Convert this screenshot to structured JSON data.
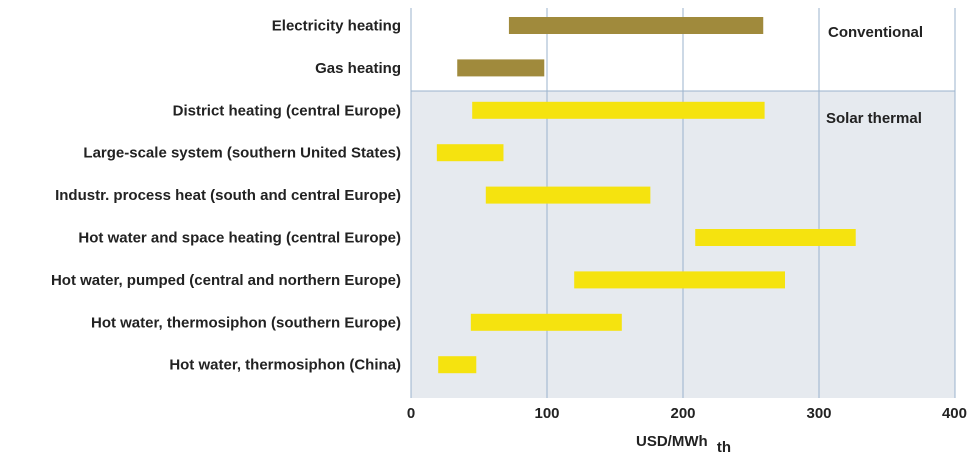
{
  "chart_data": {
    "type": "bar",
    "orientation": "horizontal",
    "subtype": "floating-range",
    "categories": [
      "Electricity heating",
      "Gas heating",
      "District heating (central Europe)",
      "Large-scale system (southern United States)",
      "Industr. process heat (south and central Europe)",
      "Hot water and space heating (central Europe)",
      "Hot water, pumped (central and northern Europe)",
      "Hot water, thermosiphon (southern Europe)",
      "Hot water, thermosiphon (China)"
    ],
    "ranges": [
      [
        72,
        259
      ],
      [
        34,
        98
      ],
      [
        45,
        260
      ],
      [
        19,
        68
      ],
      [
        55,
        176
      ],
      [
        209,
        327
      ],
      [
        120,
        275
      ],
      [
        44,
        155
      ],
      [
        20,
        48
      ]
    ],
    "groups": [
      {
        "name": "Conventional",
        "categories": [
          0,
          1
        ],
        "color": "#a08a3c",
        "background": "#ffffff"
      },
      {
        "name": "Solar thermal",
        "categories": [
          2,
          3,
          4,
          5,
          6,
          7,
          8
        ],
        "color": "#f5e30f",
        "background": "#e6eaef"
      }
    ],
    "xlabel": "USD/MWh",
    "xlabel_sub": "th",
    "ylabel": "",
    "xlim": [
      0,
      400
    ],
    "xticks": [
      "0",
      "100",
      "200",
      "300",
      "400"
    ],
    "grid": "vertical",
    "grid_color": "#9bb3cc"
  }
}
